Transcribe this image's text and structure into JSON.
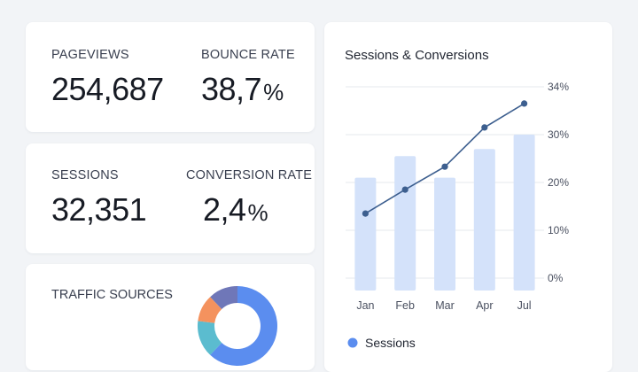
{
  "metrics": {
    "pageviews": {
      "label": "PAGEVIEWS",
      "value": "254,687"
    },
    "bounce_rate": {
      "label": "BOUNCE RATE",
      "value": "38,7",
      "unit": "%"
    },
    "sessions": {
      "label": "SESSIONS",
      "value": "32,351"
    },
    "conversion_rate": {
      "label": "CONVERSION RATE",
      "value": "2,4",
      "unit": "%"
    }
  },
  "traffic": {
    "title": "TRAFFIC SOURCES",
    "segments": [
      {
        "name": "segment-blue",
        "value": 62,
        "color": "#5b8def"
      },
      {
        "name": "segment-teal",
        "value": 15,
        "color": "#5bbccf"
      },
      {
        "name": "segment-orange",
        "value": 11,
        "color": "#f4925e"
      },
      {
        "name": "segment-purple",
        "value": 12,
        "color": "#6f77b8"
      }
    ]
  },
  "chart_data": {
    "type": "bar",
    "title": "Sessions & Conversions",
    "categories": [
      "Jan",
      "Feb",
      "Mar",
      "Apr",
      "Jul"
    ],
    "series": [
      {
        "name": "Sessions",
        "kind": "bar",
        "values": [
          21,
          25.5,
          21,
          27,
          30
        ]
      },
      {
        "name": "Conversions",
        "kind": "line",
        "values": [
          13.5,
          18.5,
          23.3,
          31.5,
          36.5
        ]
      }
    ],
    "y_ticks": [
      "0%",
      "10%",
      "20%",
      "30%",
      "34%"
    ],
    "ylim": [
      0,
      40
    ],
    "legend": [
      "Sessions"
    ],
    "colors": {
      "bar": "#d4e2fa",
      "line": "#3d5f8f",
      "legend_dot": "#5b8def",
      "grid": "#e5e8ee"
    }
  }
}
